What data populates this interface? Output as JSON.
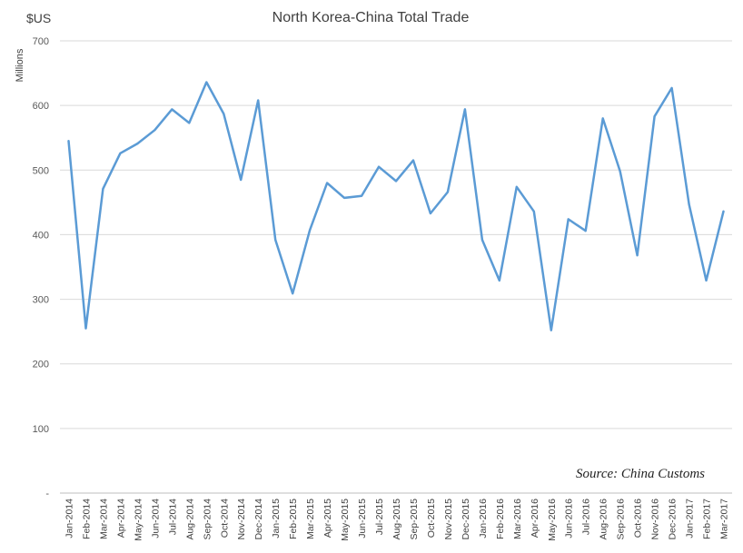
{
  "chart_data": {
    "type": "line",
    "title": "North Korea-China Total Trade",
    "unit_label": "$US",
    "ylabel": "Millions",
    "source": "Source: China Customs",
    "ylim": [
      0,
      700
    ],
    "y_ticks": [
      {
        "value": 0,
        "label": "-"
      },
      {
        "value": 100,
        "label": "100"
      },
      {
        "value": 200,
        "label": "200"
      },
      {
        "value": 300,
        "label": "300"
      },
      {
        "value": 400,
        "label": "400"
      },
      {
        "value": 500,
        "label": "500"
      },
      {
        "value": 600,
        "label": "600"
      },
      {
        "value": 700,
        "label": "700"
      }
    ],
    "grid": true,
    "legend": "none",
    "color": "#5b9bd5",
    "categories": [
      "Jan-2014",
      "Feb-2014",
      "Mar-2014",
      "Apr-2014",
      "May-2014",
      "Jun-2014",
      "Jul-2014",
      "Aug-2014",
      "Sep-2014",
      "Oct-2014",
      "Nov-2014",
      "Dec-2014",
      "Jan-2015",
      "Feb-2015",
      "Mar-2015",
      "Apr-2015",
      "May-2015",
      "Jun-2015",
      "Jul-2015",
      "Aug-2015",
      "Sep-2015",
      "Oct-2015",
      "Nov-2015",
      "Dec-2015",
      "Jan-2016",
      "Feb-2016",
      "Mar-2016",
      "Apr-2016",
      "May-2016",
      "Jun-2016",
      "Jul-2016",
      "Aug-2016",
      "Sep-2016",
      "Oct-2016",
      "Nov-2016",
      "Dec-2016",
      "Jan-2017",
      "Feb-2017",
      "Mar-2017"
    ],
    "series": [
      {
        "values": [
          545,
          255,
          471,
          526,
          541,
          562,
          594,
          573,
          636,
          587,
          485,
          608,
          392,
          309,
          407,
          480,
          457,
          460,
          505,
          483,
          515,
          433,
          466,
          594,
          392,
          329,
          474,
          436,
          252,
          424,
          406,
          580,
          498,
          368,
          583,
          627,
          447,
          329,
          436
        ]
      }
    ]
  }
}
